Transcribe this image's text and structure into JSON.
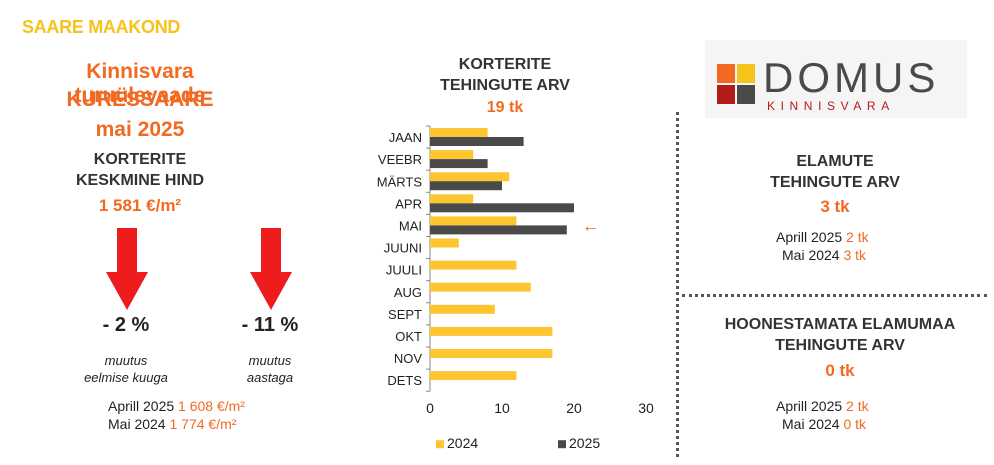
{
  "region": "SAARE MAAKOND",
  "header": {
    "title_line1": "Kinnisvara turuülevaade",
    "title_line2": "KURESSAARE",
    "title_line3": "mai 2025"
  },
  "avg_price": {
    "label_line1": "KORTERITE",
    "label_line2": "KESKMINE HIND",
    "value": "1 581 €/m²",
    "change_month": {
      "percent": "- 2 %",
      "note_line1": "muutus",
      "note_line2": "eelmise kuuga"
    },
    "change_year": {
      "percent": "- 11 %",
      "note_line1": "muutus",
      "note_line2": "aastaga"
    },
    "compare": [
      {
        "label": "Aprill 2025",
        "value": "1 608 €/m²"
      },
      {
        "label": "Mai 2024",
        "value": "1 774 €/m²"
      }
    ]
  },
  "apartments": {
    "title_line1": "KORTERITE",
    "title_line2": "TEHINGUTE ARV",
    "value": "19 tk"
  },
  "chart_data": {
    "type": "bar",
    "orientation": "horizontal",
    "categories": [
      "JAAN",
      "VEEBR",
      "MÄRTS",
      "APR",
      "MAI",
      "JUUNI",
      "JUULI",
      "AUG",
      "SEPT",
      "OKT",
      "NOV",
      "DETS"
    ],
    "series": [
      {
        "name": "2024",
        "color": "#fdc52f",
        "values": [
          8,
          6,
          11,
          6,
          12,
          4,
          12,
          14,
          9,
          17,
          17,
          12
        ]
      },
      {
        "name": "2025",
        "color": "#4a4a4a",
        "values": [
          13,
          8,
          10,
          20,
          19,
          null,
          null,
          null,
          null,
          null,
          null,
          null
        ]
      }
    ],
    "xlim": [
      0,
      30
    ],
    "xticks": [
      0,
      10,
      20,
      30
    ],
    "grid": false,
    "legend": "bottom",
    "annotation": "←",
    "annotation_category": "MAI"
  },
  "logo": {
    "name": "DOMUS",
    "sub": "KINNISVARA",
    "colors": [
      "#f26a21",
      "#f6c31c",
      "#b31b1b",
      "#4a4a4a"
    ]
  },
  "houses": {
    "title_line1": "ELAMUTE",
    "title_line2": "TEHINGUTE ARV",
    "value": "3 tk",
    "compare": [
      {
        "label": "Aprill 2025",
        "value": "2 tk"
      },
      {
        "label": "Mai 2024",
        "value": "3 tk"
      }
    ]
  },
  "land": {
    "title_line1": "HOONESTAMATA ELAMUMAA",
    "title_line2": "TEHINGUTE ARV",
    "value": "0 tk",
    "compare": [
      {
        "label": "Aprill 2025",
        "value": "2 tk"
      },
      {
        "label": "Mai 2024",
        "value": "0 tk"
      }
    ]
  }
}
